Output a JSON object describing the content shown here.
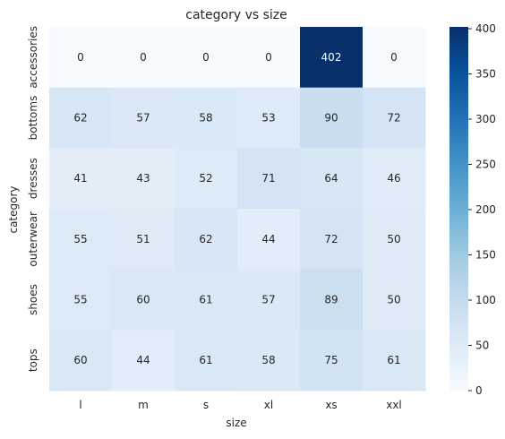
{
  "chart_data": {
    "type": "heatmap",
    "title": "category vs size",
    "xlabel": "size",
    "ylabel": "category",
    "x_categories": [
      "l",
      "m",
      "s",
      "xl",
      "xs",
      "xxl"
    ],
    "y_categories": [
      "accessories",
      "bottoms",
      "dresses",
      "outerwear",
      "shoes",
      "tops"
    ],
    "values": [
      [
        0,
        0,
        0,
        0,
        402,
        0
      ],
      [
        62,
        57,
        58,
        53,
        90,
        72
      ],
      [
        41,
        43,
        52,
        71,
        64,
        46
      ],
      [
        55,
        51,
        62,
        44,
        72,
        50
      ],
      [
        55,
        60,
        61,
        57,
        89,
        50
      ],
      [
        60,
        44,
        61,
        58,
        75,
        61
      ]
    ],
    "colormap": "Blues",
    "color_min": "#f7fbff",
    "color_max": "#08306b",
    "vmin": 0,
    "vmax": 402,
    "colorbar_ticks": [
      0,
      50,
      100,
      150,
      200,
      250,
      300,
      350,
      400
    ]
  }
}
